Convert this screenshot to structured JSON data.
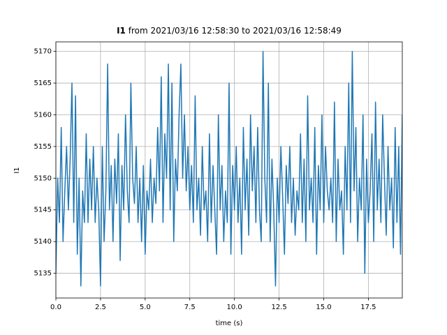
{
  "chart_data": {
    "type": "line",
    "title_var": "I1",
    "title_rest": " from 2021/03/16 12:58:30 to 2021/03/16 12:58:49",
    "xlabel": "time (s)",
    "ylabel": "I1",
    "x": [
      0,
      0.1,
      0.2,
      0.3,
      0.4,
      0.5,
      0.6,
      0.7,
      0.8,
      0.9,
      1,
      1.1,
      1.2,
      1.3,
      1.4,
      1.5,
      1.6,
      1.7,
      1.8,
      1.9,
      2,
      2.1,
      2.2,
      2.3,
      2.4,
      2.5,
      2.6,
      2.7,
      2.8,
      2.9,
      3,
      3.1,
      3.2,
      3.3,
      3.4,
      3.5,
      3.6,
      3.7,
      3.8,
      3.9,
      4,
      4.1,
      4.2,
      4.3,
      4.4,
      4.5,
      4.6,
      4.7,
      4.8,
      4.9,
      5,
      5.1,
      5.2,
      5.3,
      5.4,
      5.5,
      5.6,
      5.7,
      5.8,
      5.9,
      6,
      6.1,
      6.2,
      6.3,
      6.4,
      6.5,
      6.6,
      6.7,
      6.8,
      6.9,
      7,
      7.1,
      7.2,
      7.3,
      7.4,
      7.5,
      7.6,
      7.7,
      7.8,
      7.9,
      8,
      8.1,
      8.2,
      8.3,
      8.4,
      8.5,
      8.6,
      8.7,
      8.8,
      8.9,
      9,
      9.1,
      9.2,
      9.3,
      9.4,
      9.5,
      9.6,
      9.7,
      9.8,
      9.9,
      10,
      10.1,
      10.2,
      10.3,
      10.4,
      10.5,
      10.6,
      10.7,
      10.8,
      10.9,
      11,
      11.1,
      11.2,
      11.3,
      11.4,
      11.5,
      11.6,
      11.7,
      11.8,
      11.9,
      12,
      12.1,
      12.2,
      12.3,
      12.4,
      12.5,
      12.6,
      12.7,
      12.8,
      12.9,
      13,
      13.1,
      13.2,
      13.3,
      13.4,
      13.5,
      13.6,
      13.7,
      13.8,
      13.9,
      14,
      14.1,
      14.2,
      14.3,
      14.4,
      14.5,
      14.6,
      14.7,
      14.8,
      14.9,
      15,
      15.1,
      15.2,
      15.3,
      15.4,
      15.5,
      15.6,
      15.7,
      15.8,
      15.9,
      16,
      16.1,
      16.2,
      16.3,
      16.4,
      16.5,
      16.6,
      16.7,
      16.8,
      16.9,
      17,
      17.1,
      17.2,
      17.3,
      17.4,
      17.5,
      17.6,
      17.7,
      17.8,
      17.9,
      18,
      18.1,
      18.2,
      18.3,
      18.4,
      18.5,
      18.6,
      18.7,
      18.8,
      18.9,
      19,
      19.1,
      19.2,
      19.3,
      19.4
    ],
    "series": [
      {
        "name": "I1",
        "color": "#1f77b4",
        "values": [
          5135,
          5150,
          5143,
          5158,
          5140,
          5148,
          5155,
          5145,
          5153,
          5165,
          5143,
          5163,
          5138,
          5150,
          5133,
          5148,
          5143,
          5157,
          5143,
          5153,
          5145,
          5155,
          5143,
          5150,
          5145,
          5133,
          5155,
          5140,
          5148,
          5168,
          5145,
          5152,
          5140,
          5153,
          5146,
          5157,
          5137,
          5152,
          5145,
          5160,
          5148,
          5143,
          5165,
          5150,
          5146,
          5155,
          5143,
          5150,
          5140,
          5152,
          5138,
          5148,
          5145,
          5153,
          5143,
          5150,
          5146,
          5158,
          5148,
          5166,
          5143,
          5157,
          5150,
          5168,
          5145,
          5165,
          5140,
          5153,
          5148,
          5160,
          5168,
          5150,
          5160,
          5148,
          5155,
          5145,
          5152,
          5143,
          5163,
          5145,
          5150,
          5141,
          5155,
          5145,
          5148,
          5140,
          5157,
          5143,
          5152,
          5145,
          5138,
          5160,
          5145,
          5152,
          5140,
          5148,
          5143,
          5165,
          5138,
          5152,
          5145,
          5155,
          5143,
          5150,
          5138,
          5158,
          5145,
          5153,
          5141,
          5160,
          5148,
          5155,
          5143,
          5158,
          5145,
          5140,
          5170,
          5150,
          5143,
          5165,
          5140,
          5153,
          5145,
          5133,
          5150,
          5143,
          5155,
          5147,
          5138,
          5152,
          5146,
          5155,
          5143,
          5150,
          5141,
          5148,
          5145,
          5157,
          5143,
          5153,
          5140,
          5163,
          5145,
          5150,
          5143,
          5158,
          5138,
          5152,
          5145,
          5160,
          5143,
          5155,
          5148,
          5145,
          5150,
          5143,
          5162,
          5140,
          5153,
          5145,
          5148,
          5138,
          5155,
          5145,
          5165,
          5143,
          5170,
          5148,
          5158,
          5140,
          5150,
          5145,
          5160,
          5135,
          5153,
          5143,
          5148,
          5157,
          5140,
          5162,
          5145,
          5153,
          5143,
          5160,
          5150,
          5141,
          5155,
          5145,
          5150,
          5139,
          5158,
          5143,
          5155,
          5138,
          5160
        ]
      }
    ],
    "xlim": [
      0,
      19.4
    ],
    "ylim": [
      5131.1,
      5171.5
    ],
    "xticks": [
      {
        "value": 0,
        "label": "0.0"
      },
      2.5,
      {
        "value": 5,
        "label": "5.0"
      },
      7.5,
      {
        "value": 10,
        "label": "10.0"
      },
      12.5,
      {
        "value": 15,
        "label": "15.0"
      },
      17.5
    ],
    "yticks": [
      5135,
      5140,
      5145,
      5150,
      5155,
      5160,
      5165,
      5170
    ],
    "grid": true
  }
}
